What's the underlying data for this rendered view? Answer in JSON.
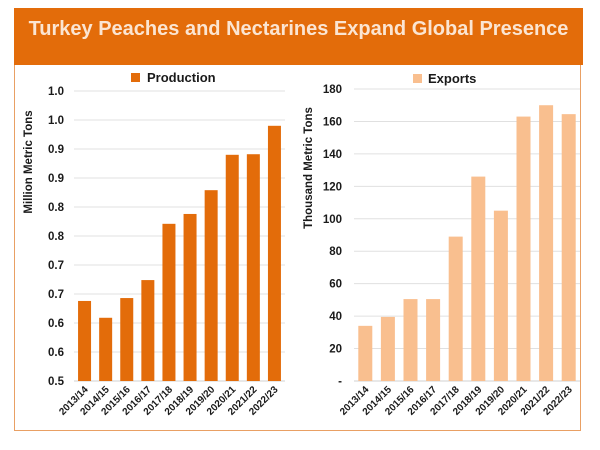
{
  "header": {
    "title": "Turkey Peaches and Nectarines Expand Global Presence"
  },
  "colors": {
    "header_bg": "#e36c0a",
    "title_text": "#fbe5d2",
    "production": "#e36c0a",
    "exports": "#f9bf8f",
    "frame_border": "#e9a064",
    "grid": "#e0e0e0"
  },
  "chart_data": [
    {
      "type": "bar",
      "title": "",
      "legend": [
        "Production"
      ],
      "legend_position": "top-center",
      "xlabel": "",
      "ylabel": "Million Metric Tons",
      "ylim": [
        0.5,
        1.0
      ],
      "yticks": [
        0.5,
        0.55,
        0.6,
        0.65,
        0.7,
        0.75,
        0.8,
        0.85,
        0.9,
        0.95,
        1.0
      ],
      "ytick_labels": [
        "0.5",
        "0.6",
        "0.6",
        "0.7",
        "0.7",
        "0.8",
        "0.8",
        "0.9",
        "0.9",
        "1.0",
        "1.0"
      ],
      "grid": true,
      "categories": [
        "2013/14",
        "2014/15",
        "2015/16",
        "2016/17",
        "2017/18",
        "2018/19",
        "2019/20",
        "2020/21",
        "2021/22",
        "2022/23"
      ],
      "series": [
        {
          "name": "Production",
          "values": [
            0.638,
            0.609,
            0.643,
            0.674,
            0.771,
            0.788,
            0.829,
            0.89,
            0.891,
            0.94
          ]
        }
      ]
    },
    {
      "type": "bar",
      "title": "",
      "legend": [
        "Exports"
      ],
      "legend_position": "top-center",
      "xlabel": "",
      "ylabel": "Thousand Metric Tons",
      "ylim": [
        0,
        180
      ],
      "yticks": [
        0,
        20,
        40,
        60,
        80,
        100,
        120,
        140,
        160,
        180
      ],
      "ytick_labels": [
        "-",
        "20",
        "40",
        "60",
        "80",
        "100",
        "120",
        "140",
        "160",
        "180"
      ],
      "grid": true,
      "categories": [
        "2013/14",
        "2014/15",
        "2015/16",
        "2016/17",
        "2017/18",
        "2018/19",
        "2019/20",
        "2020/21",
        "2021/22",
        "2022/23"
      ],
      "series": [
        {
          "name": "Exports",
          "values": [
            34,
            39.5,
            50.5,
            50.5,
            89,
            126,
            105,
            163,
            170,
            164.5
          ]
        }
      ]
    }
  ]
}
